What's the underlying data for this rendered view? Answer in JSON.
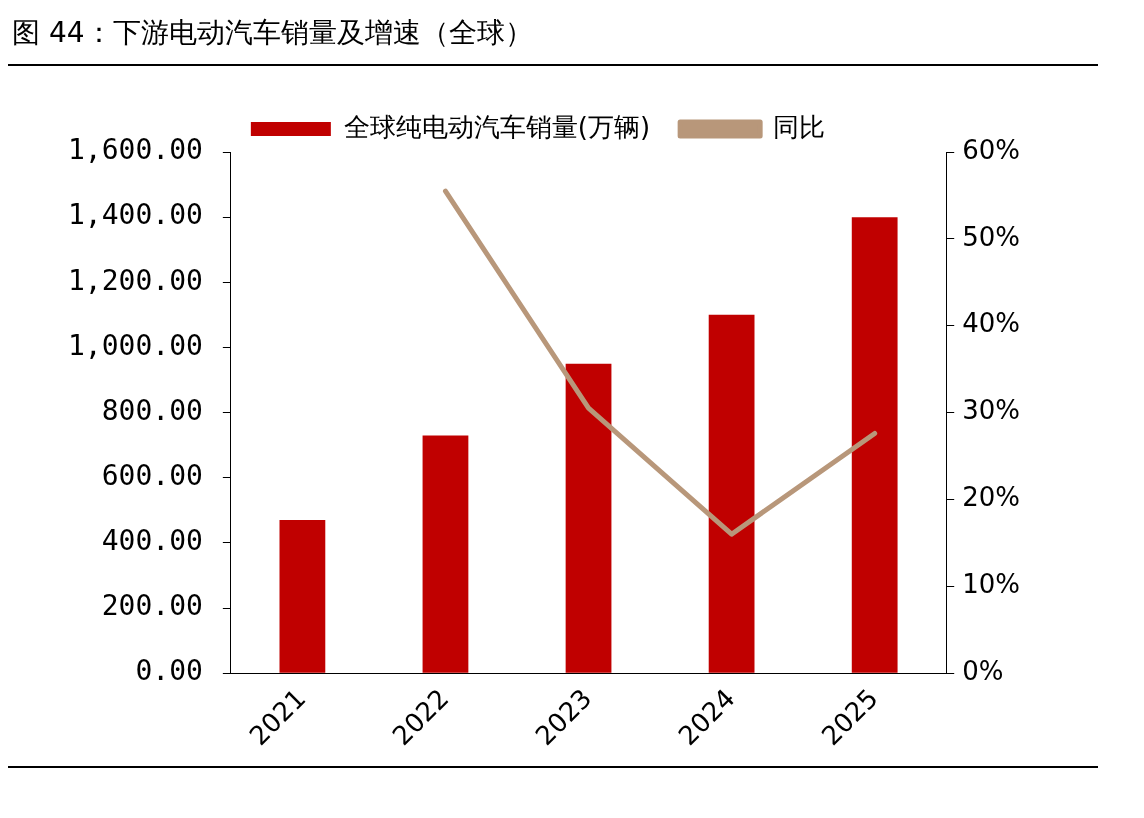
{
  "chart_data": {
    "type": "bar",
    "title": "图 44：下游电动汽车销量及增速（全球）",
    "categories": [
      "2021",
      "2022",
      "2023",
      "2024",
      "2025"
    ],
    "series": [
      {
        "name": "全球纯电动汽车销量(万辆)",
        "color": "#c00000",
        "values": [
          470,
          730,
          950,
          1100,
          1400
        ]
      },
      {
        "name": "同比",
        "type": "line",
        "axis": "y2",
        "color": "#b8977a",
        "values": [
          null,
          55.5,
          30.5,
          16,
          27.6
        ]
      }
    ],
    "ylim": [
      0,
      1600
    ],
    "yticks": [
      {
        "value": 0,
        "label": "0.00"
      },
      {
        "value": 200,
        "label": "200.00"
      },
      {
        "value": 400,
        "label": "400.00"
      },
      {
        "value": 600,
        "label": "600.00"
      },
      {
        "value": 800,
        "label": "800.00"
      },
      {
        "value": 1000,
        "label": "1,000.00"
      },
      {
        "value": 1200,
        "label": "1,200.00"
      },
      {
        "value": 1400,
        "label": "1,400.00"
      },
      {
        "value": 1600,
        "label": "1,600.00"
      }
    ],
    "y2lim": [
      0,
      60
    ],
    "y2ticks": [
      {
        "value": 0,
        "label": "0%"
      },
      {
        "value": 10,
        "label": "10%"
      },
      {
        "value": 20,
        "label": "20%"
      },
      {
        "value": 30,
        "label": "30%"
      },
      {
        "value": 40,
        "label": "40%"
      },
      {
        "value": 50,
        "label": "50%"
      },
      {
        "value": 60,
        "label": "60%"
      }
    ],
    "grid": false,
    "legend": "top",
    "marker": "none"
  }
}
